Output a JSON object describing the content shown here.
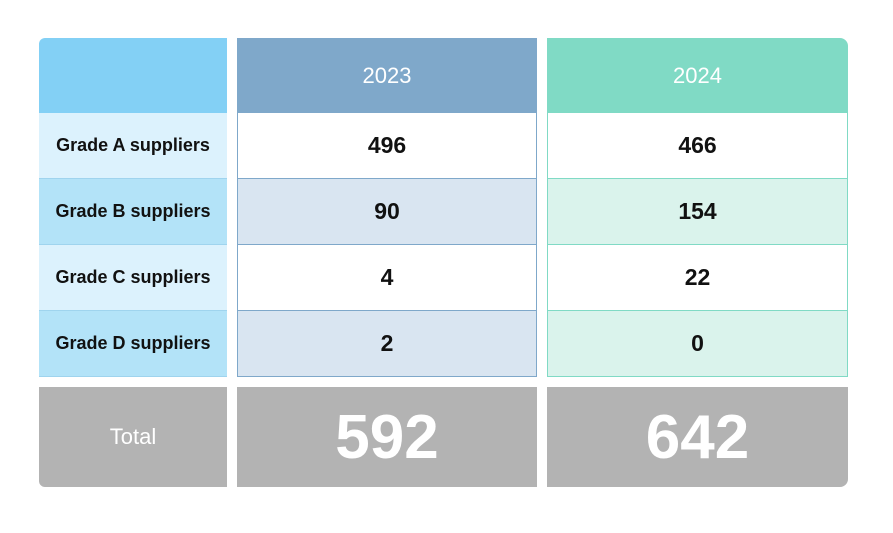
{
  "table": {
    "header": [
      "",
      "2023",
      "2024"
    ],
    "rows": [
      {
        "label": "Grade A suppliers",
        "y2023": "496",
        "y2024": "466"
      },
      {
        "label": "Grade B suppliers",
        "y2023": "90",
        "y2024": "154"
      },
      {
        "label": "Grade C suppliers",
        "y2023": "4",
        "y2024": "22"
      },
      {
        "label": "Grade D suppliers",
        "y2023": "2",
        "y2024": "0"
      }
    ],
    "total": {
      "label": "Total",
      "y2023": "592",
      "y2024": "642"
    }
  },
  "colors": {
    "label_header": "#83d0f5",
    "header_2023": "#7fa8ca",
    "header_2024": "#80dac5",
    "total_row": "#b3b3b3"
  }
}
